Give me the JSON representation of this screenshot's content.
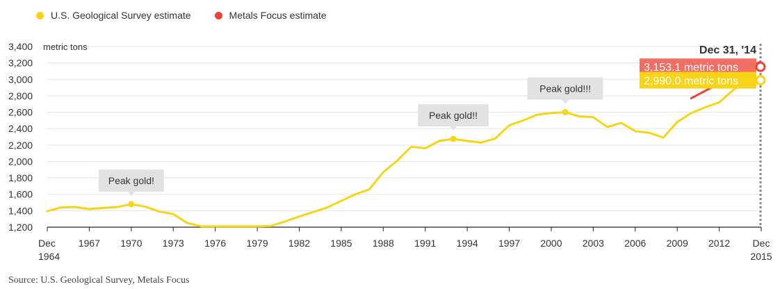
{
  "legend": [
    {
      "label": "U.S. Geological Survey estimate",
      "color": "#f7d417"
    },
    {
      "label": "Metals Focus estimate",
      "color": "#ef4237"
    }
  ],
  "source": "Source: U.S. Geological Survey, Metals Focus",
  "chart_data": {
    "type": "line",
    "ylim": [
      1200,
      3400
    ],
    "xlim": [
      1964,
      2015
    ],
    "y_ticks": [
      1200,
      1400,
      1600,
      1800,
      2000,
      2200,
      2400,
      2600,
      2800,
      3000,
      3200,
      3400
    ],
    "y_tick_labels": [
      "1,200",
      "1,400",
      "1,600",
      "1,800",
      "2,000",
      "2,200",
      "2,400",
      "2,600",
      "2,800",
      "3,000",
      "3,200",
      "3,400"
    ],
    "y_unit_label": "metric tons",
    "x_ticks": [
      1964,
      1967,
      1970,
      1973,
      1976,
      1979,
      1982,
      1985,
      1988,
      1991,
      1994,
      1997,
      2000,
      2003,
      2006,
      2009,
      2012,
      2015
    ],
    "x_tick_labels": [
      "Dec",
      "1967",
      "1970",
      "1973",
      "1976",
      "1979",
      "1982",
      "1985",
      "1988",
      "1991",
      "1994",
      "1997",
      "2000",
      "2003",
      "2006",
      "2009",
      "2012",
      "Dec"
    ],
    "x_tick_sublabels": {
      "first": "1964",
      "last": "2015"
    },
    "grid": true,
    "series": [
      {
        "name": "U.S. Geological Survey estimate",
        "color": "#f7d417",
        "x": [
          1964,
          1965,
          1966,
          1967,
          1968,
          1969,
          1970,
          1971,
          1972,
          1973,
          1974,
          1975,
          1976,
          1977,
          1978,
          1979,
          1980,
          1981,
          1982,
          1983,
          1984,
          1985,
          1986,
          1987,
          1988,
          1989,
          1990,
          1991,
          1992,
          1993,
          1994,
          1995,
          1996,
          1997,
          1998,
          1999,
          2000,
          2001,
          2002,
          2003,
          2004,
          2005,
          2006,
          2007,
          2008,
          2009,
          2010,
          2011,
          2012,
          2013,
          2014
        ],
        "y": [
          1395,
          1440,
          1445,
          1420,
          1435,
          1445,
          1480,
          1450,
          1390,
          1360,
          1250,
          1210,
          1210,
          1210,
          1210,
          1210,
          1215,
          1270,
          1330,
          1385,
          1440,
          1520,
          1600,
          1660,
          1870,
          2010,
          2180,
          2160,
          2250,
          2275,
          2250,
          2230,
          2280,
          2440,
          2500,
          2570,
          2590,
          2600,
          2550,
          2540,
          2420,
          2470,
          2370,
          2350,
          2290,
          2480,
          2590,
          2660,
          2720,
          2870,
          2990
        ]
      },
      {
        "name": "Metals Focus estimate",
        "color": "#ef4237",
        "x": [
          2010,
          2011,
          2012,
          2013,
          2014,
          2014.9
        ],
        "y": [
          2770,
          2860,
          2950,
          3050,
          3153.1,
          3210
        ]
      }
    ],
    "annotations": [
      {
        "label": "Peak gold!",
        "x": 1970,
        "y": 1480
      },
      {
        "label": "Peak gold!!",
        "x": 1993,
        "y": 2275
      },
      {
        "label": "Peak gold!!!",
        "x": 2001,
        "y": 2600
      }
    ],
    "marker": {
      "date_label": "Dec 31, '14",
      "x": 2014,
      "values": [
        {
          "label": "3,153.1 metric tons",
          "value": 3153.1,
          "color": "#ef4237",
          "box_color": "#f06e63"
        },
        {
          "label": "2,990.0 metric tons",
          "value": 2990.0,
          "color": "#f7d417",
          "box_color": "#f7d417"
        }
      ]
    }
  }
}
